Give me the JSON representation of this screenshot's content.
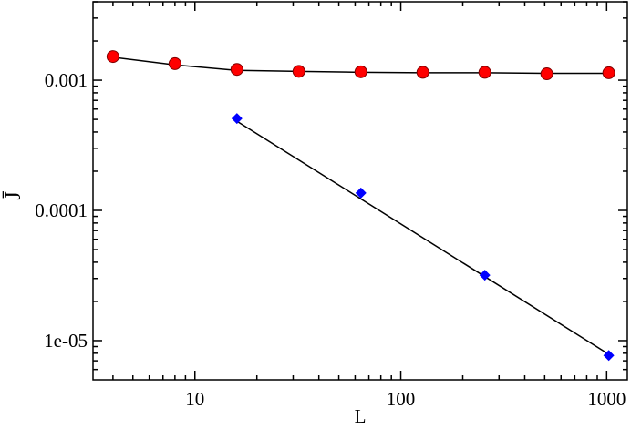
{
  "chart_data": {
    "type": "scatter",
    "xlabel": "L",
    "ylabel": "J̄",
    "xscale": "log",
    "yscale": "log",
    "xlim": [
      3.2,
      1260
    ],
    "ylim": [
      5e-06,
      0.004
    ],
    "xticks": [
      10,
      100,
      1000
    ],
    "yticks": [
      0.001,
      0.0001,
      {
        "value": 1e-05,
        "label": "1e-05"
      }
    ],
    "xminor_ticks": [
      4,
      5,
      6,
      7,
      8,
      9,
      20,
      30,
      40,
      50,
      60,
      70,
      80,
      90,
      200,
      300,
      400,
      500,
      600,
      700,
      800,
      900
    ],
    "yminor_ticks": [
      6e-06,
      7e-06,
      8e-06,
      9e-06,
      2e-05,
      3e-05,
      4e-05,
      5e-05,
      6e-05,
      7e-05,
      8e-05,
      9e-05,
      0.0002,
      0.0003,
      0.0004,
      0.0005,
      0.0006,
      0.0007,
      0.0008,
      0.0009,
      0.002,
      0.003,
      0.004
    ],
    "series": [
      {
        "marker": "line",
        "color": "#000000",
        "x": [
          4,
          8,
          16,
          32,
          64,
          128,
          256,
          512,
          1024
        ],
        "values": [
          0.0015,
          0.00131,
          0.00119,
          0.00117,
          0.00115,
          0.00114,
          0.00114,
          0.00113,
          0.00113
        ]
      },
      {
        "marker": "line",
        "color": "#000000",
        "x": [
          16,
          1024
        ],
        "values": [
          0.000484,
          7.85e-06
        ]
      },
      {
        "marker": "circle",
        "color": "#ff0000",
        "x": [
          4,
          8,
          16,
          32,
          64,
          128,
          256,
          512,
          1024
        ],
        "values": [
          0.00152,
          0.00134,
          0.00121,
          0.00117,
          0.00116,
          0.00115,
          0.00115,
          0.00112,
          0.00114
        ]
      },
      {
        "marker": "diamond",
        "color": "#0000ff",
        "x": [
          16,
          64,
          256,
          1024
        ],
        "values": [
          0.000508,
          0.000136,
          3.18e-05,
          7.7e-06
        ]
      }
    ]
  }
}
